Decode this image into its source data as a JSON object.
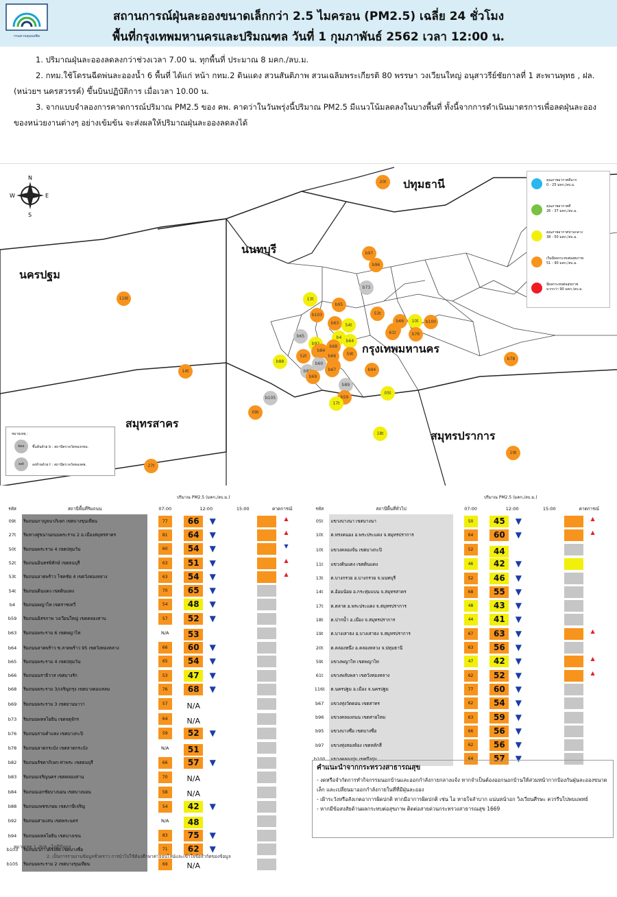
{
  "header": {
    "logo_text": "กรมควบคุมมลพิษ",
    "title_line1": "สถานการณ์ฝุ่นละอองขนาดเล็กกว่า 2.5 ไมครอน (PM2.5) เฉลี่ย 24 ชั่วโมง",
    "title_line2": "พื้นที่กรุงเทพมหานครและปริมณฑล วันที่ 1 กุมภาพันธ์ 2562 เวลา 12:00 น."
  },
  "notes": [
    "1. ปริมาณฝุ่นละอองลดลงกว่าช่วงเวลา 7.00 น. ทุกพื้นที่ ประมาณ 8 มคก./ลบ.ม.",
    "2. กทม.ใช้โดรนฉีดพ่นละอองน้ำ 6 พื้นที่ ได้แก่ หน้า กทม.2 ดินแดง สวนสันติภาพ สวนเฉลิมพระเกียรติ 80 พรรษา วงเวียนใหญ่ อนุสาวรีย์ชัยกาลที่ 1 สะพานพุทธ , ฝล. (หน่วยฯ นครสวรรค์) ขึ้นบินปฏิบัติการ เมื่อเวลา 10.00 น.",
    "3. จากแบบจำลองการคาดการณ์ปริมาณ PM2.5 ของ คพ. คาดว่าในวันพรุ่งนี้ปริมาณ PM2.5 มีแนวโน้มลดลงในบางพื้นที่ ทั้งนี้จากการดำเนินมาตรการเพื่อลดฝุ่นละอองของหน่วยงานต่างๆ อย่างเข้มข้น จะส่งผลให้ปริมาณฝุ่นละอองลดลงได้"
  ],
  "map": {
    "provinces": {
      "pathum": "ปทุมธานี",
      "nonthaburi": "นนทบุรี",
      "nakhonpathom": "นครปฐม",
      "bangkok": "กรุงเทพมหานคร",
      "samutsakhon": "สมุทรสาคร",
      "samutprakan": "สมุทรปราการ"
    },
    "compass": {
      "n": "N",
      "s": "S",
      "e": "E",
      "w": "W"
    },
    "legend": [
      {
        "title": "คุณภาพอากาศดีมาก",
        "range": "0 - 25 มคก./ลบ.ม.",
        "color": "#29b7ee"
      },
      {
        "title": "คุณภาพอากาศดี",
        "range": "26 - 37 มคก./ลบ.ม.",
        "color": "#7ac143"
      },
      {
        "title": "คุณภาพอากาศปานกลาง",
        "range": "38 - 50 มคก./ลบ.ม.",
        "color": "#f2ef0c"
      },
      {
        "title": "เริ่มมีผลกระทบต่อสุขภาพ",
        "range": "51 - 90 มคก./ลบ.ม.",
        "color": "#f7941d"
      },
      {
        "title": "มีผลกระทบต่อสุขภาพ",
        "range": "มากกว่า 90 มคก./ลบ.ม.",
        "color": "#ed1c24"
      }
    ],
    "symbol_legend": {
      "title": "หมายเหตุ :",
      "b_label": "ขึ้นต้นด้วย b : สถานีตรวจวัดของกทม.",
      "t_label": "ลงท้ายด้วย t : สถานีตรวจวัดของคพ.",
      "b_sym": "bxx",
      "t_sym": "xxt"
    },
    "stations": [
      {
        "id": "20t",
        "c": "o"
      },
      {
        "id": "b97",
        "c": "o"
      },
      {
        "id": "b96",
        "c": "o"
      },
      {
        "id": "b73",
        "c": "g"
      },
      {
        "id": "13t",
        "c": "y"
      },
      {
        "id": "b95",
        "c": "o"
      },
      {
        "id": "b103",
        "c": "o"
      },
      {
        "id": "53t",
        "c": "o"
      },
      {
        "id": "b63",
        "c": "o"
      },
      {
        "id": "54t",
        "c": "y"
      },
      {
        "id": "50t",
        "c": "o"
      },
      {
        "id": "b66",
        "c": "o"
      },
      {
        "id": "10t",
        "c": "y"
      },
      {
        "id": "b100",
        "c": "o"
      },
      {
        "id": "61t",
        "c": "o"
      },
      {
        "id": "b76",
        "c": "o"
      },
      {
        "id": "b65",
        "c": "g"
      },
      {
        "id": "b4",
        "c": "y"
      },
      {
        "id": "b92",
        "c": "y"
      },
      {
        "id": "b64",
        "c": "y"
      },
      {
        "id": "b68",
        "c": "o"
      },
      {
        "id": "b88",
        "c": "y"
      },
      {
        "id": "52t",
        "c": "o"
      },
      {
        "id": "b62",
        "c": "o"
      },
      {
        "id": "b66",
        "c": "o"
      },
      {
        "id": "b61",
        "c": "o"
      },
      {
        "id": "b67",
        "c": "o"
      },
      {
        "id": "b94",
        "c": "o"
      },
      {
        "id": "b83",
        "c": "g"
      },
      {
        "id": "b69",
        "c": "o"
      },
      {
        "id": "59t",
        "c": "o"
      },
      {
        "id": "b89",
        "c": "g"
      },
      {
        "id": "b59",
        "c": "o"
      },
      {
        "id": "17t",
        "c": "y"
      },
      {
        "id": "b105",
        "c": "g"
      },
      {
        "id": "05t",
        "c": "y"
      },
      {
        "id": "116t",
        "c": "o"
      },
      {
        "id": "14t",
        "c": "o"
      },
      {
        "id": "09t",
        "c": "o"
      },
      {
        "id": "b78",
        "c": "o"
      },
      {
        "id": "18t",
        "c": "y"
      },
      {
        "id": "19t",
        "c": "o"
      },
      {
        "id": "27t",
        "c": "o"
      },
      {
        "id": "b60",
        "c": "g"
      },
      {
        "id": "b84",
        "c": "o"
      }
    ]
  },
  "table_headers": {
    "unit_label": "ปริมาณ PM2.5 (มคก./ลบ.ม.)",
    "code": "รหัส",
    "left_name": "สถานีพื้นที่ริมถนน",
    "right_name": "สถานีพื้นที่ทั่วไป",
    "t7": "07:00",
    "t12": "12:00",
    "t15": "15:00",
    "forecast": "คาดการณ์"
  },
  "left_rows": [
    {
      "code": "09t",
      "name": "ริมถนนกาญจนาภิเษก เขตบางขุนเทียน",
      "v7": "77",
      "v12": "66",
      "a": "dn",
      "f": "o",
      "ft": "up"
    },
    {
      "code": "27t",
      "name": "ริมทางคู่ขนานถนนพระราม 2 อ.เมืองสมุทรสาคร",
      "v7": "81",
      "v12": "64",
      "a": "dn",
      "f": "o",
      "ft": "up"
    },
    {
      "code": "50t",
      "name": "ริมถนนพระราม 4 เขตปทุมวัน",
      "v7": "60",
      "v12": "54",
      "a": "dn",
      "f": "o",
      "ft": "dn"
    },
    {
      "code": "52t",
      "name": "ริมถนนอินทรพิทักษ์ เขตธนบุรี",
      "v7": "63",
      "v12": "51",
      "a": "dn",
      "f": "o",
      "ft": "up"
    },
    {
      "code": "53t",
      "name": "ริมถนนลาดพร้าว โชคชัย 4 เขตวังทองหลาง",
      "v7": "63",
      "v12": "54",
      "a": "dn",
      "f": "o",
      "ft": "up"
    },
    {
      "code": "54t",
      "name": "ริมถนนดินแดง เขตดินแดง",
      "v7": "70",
      "v12": "65",
      "a": "dn",
      "f": "g",
      "ft": ""
    },
    {
      "code": "b4",
      "name": "ริมถนนพญาไท เขตราชเทวี",
      "v7": "54",
      "v12": "48",
      "a": "dn",
      "f": "g",
      "ft": "",
      "y12": true
    },
    {
      "code": "b59",
      "name": "ริมถนนอิสรภาพ วงเวียนใหญ่ เขตคลองสาน",
      "v7": "57",
      "v12": "52",
      "a": "dn",
      "f": "g",
      "ft": ""
    },
    {
      "code": "b63",
      "name": "ริมถนนพระราม 6 เขตพญาไท",
      "v7": "N/A",
      "v12": "53",
      "a": "",
      "f": "g",
      "ft": ""
    },
    {
      "code": "b64",
      "name": "ริมถนนลาดพร้าว ซ.ลาดพร้าว 95 เขตวังทองหลาง",
      "v7": "66",
      "v12": "60",
      "a": "dn",
      "f": "g",
      "ft": ""
    },
    {
      "code": "b65",
      "name": "ริมถนนพระราม 4 เขตปทุมวัน",
      "v7": "65",
      "v12": "54",
      "a": "dn",
      "f": "g",
      "ft": ""
    },
    {
      "code": "b66",
      "name": "ริมถนนนราธิวาส เขตบางรัก",
      "v7": "53",
      "v12": "47",
      "a": "dn",
      "f": "g",
      "ft": "",
      "y12": true
    },
    {
      "code": "b68",
      "name": "ริมถนนพระราม 3/เจริญกรุง เขตบางคอแหลม",
      "v7": "76",
      "v12": "68",
      "a": "dn",
      "f": "g",
      "ft": ""
    },
    {
      "code": "b69",
      "name": "ริมถนนพระราม 3 เขตยานนาวา",
      "v7": "57",
      "v12": "N/A",
      "a": "",
      "f": "g",
      "ft": ""
    },
    {
      "code": "b73",
      "name": "ริมถนนพหลโยธิน เขตจตุจักร",
      "v7": "64",
      "v12": "N/A",
      "a": "",
      "f": "g",
      "ft": ""
    },
    {
      "code": "b76",
      "name": "ริมถนนรามคำแหง เขตบางกะปิ",
      "v7": "59",
      "v12": "52",
      "a": "dn",
      "f": "g",
      "ft": ""
    },
    {
      "code": "b78",
      "name": "ริมถนนลาดกระบัง เขตลาดกระบัง",
      "v7": "N/A",
      "v12": "51",
      "a": "",
      "f": "g",
      "ft": ""
    },
    {
      "code": "b82",
      "name": "ริมถนนรัชดาภิเษก-ท่าพระ เขตธนบุรี",
      "v7": "66",
      "v12": "57",
      "a": "dn",
      "f": "g",
      "ft": ""
    },
    {
      "code": "b83",
      "name": "ริมถนนเจริญนคร เขตคลองสาน",
      "v7": "70",
      "v12": "N/A",
      "a": "",
      "f": "g",
      "ft": ""
    },
    {
      "code": "b84",
      "name": "ริมถนนเอกชัยบางบอน เขตบางบอน",
      "v7": "58",
      "v12": "N/A",
      "a": "",
      "f": "g",
      "ft": ""
    },
    {
      "code": "b88",
      "name": "ริมถนนเพชรเกษม เขตภาษีเจริญ",
      "v7": "54",
      "v12": "42",
      "a": "dn",
      "f": "g",
      "ft": "",
      "y12": true
    },
    {
      "code": "b92",
      "name": "ริมถนนสามเสน เขตพระนคร",
      "v7": "N/A",
      "v12": "48",
      "a": "",
      "f": "g",
      "ft": "",
      "y12": true
    },
    {
      "code": "b94",
      "name": "ริมถนนพหลโยธิน เขตบางเขน",
      "v7": "83",
      "v12": "75",
      "a": "dn",
      "f": "g",
      "ft": ""
    },
    {
      "code": "b103",
      "name": "ริมถนนวิภาวดีรังสิต เขตบางซื่อ",
      "v7": "71",
      "v12": "62",
      "a": "dn",
      "f": "g",
      "ft": ""
    },
    {
      "code": "b105",
      "name": "ริมถนนพระราม 2 เขตบางขุนเทียน",
      "v7": "69",
      "v12": "N/A",
      "a": "",
      "f": "g",
      "ft": ""
    }
  ],
  "right_rows": [
    {
      "code": "05t",
      "name": "แขวงบางนา เขตบางนา",
      "v7": "50",
      "v12": "45",
      "a": "dn",
      "f": "o",
      "ft": "up",
      "y7": true,
      "y12": true
    },
    {
      "code": "10t",
      "name": "ต.ทรงคนอง อ.พระประแดง จ.สมุทรปราการ",
      "v7": "64",
      "v12": "60",
      "a": "dn",
      "f": "o",
      "ft": "up"
    },
    {
      "code": "10t",
      "name": "แขวงคลองจั่น เขตบางกะปิ",
      "v7": "52",
      "v12": "44",
      "a": "",
      "f": "g",
      "ft": "",
      "y12": true
    },
    {
      "code": "11t",
      "name": "แขวงดินแดง เขตดินแดง",
      "v7": "46",
      "v12": "42",
      "a": "dn",
      "f": "y",
      "ft": "",
      "y7": true,
      "y12": true
    },
    {
      "code": "13t",
      "name": "ต.บางกรวย อ.บางกรวย จ.นนทบุรี",
      "v7": "52",
      "v12": "46",
      "a": "dn",
      "f": "g",
      "ft": "",
      "y12": true
    },
    {
      "code": "14t",
      "name": "ต.อ้อมน้อย อ.กระทุ่มแบน จ.สมุทรสาคร",
      "v7": "68",
      "v12": "55",
      "a": "dn",
      "f": "g",
      "ft": ""
    },
    {
      "code": "17t",
      "name": "ต.ตลาด อ.พระประแดง จ.สมุทรปราการ",
      "v7": "48",
      "v12": "43",
      "a": "dn",
      "f": "g",
      "ft": "",
      "y7": true,
      "y12": true
    },
    {
      "code": "18t",
      "name": "ต.ปากน้ำ อ.เมือง จ.สมุทรปราการ",
      "v7": "44",
      "v12": "41",
      "a": "dn",
      "f": "g",
      "ft": "",
      "y7": true,
      "y12": true
    },
    {
      "code": "19t",
      "name": "ต.บางเสาธง อ.บางเสาธง จ.สมุทรปราการ",
      "v7": "67",
      "v12": "63",
      "a": "dn",
      "f": "o",
      "ft": "up"
    },
    {
      "code": "20t",
      "name": "ต.คลองหนึ่ง อ.คลองหลวง จ.ปทุมธานี",
      "v7": "63",
      "v12": "56",
      "a": "dn",
      "f": "g",
      "ft": ""
    },
    {
      "code": "59t",
      "name": "แขวงพญาไท เขตพญาไท",
      "v7": "47",
      "v12": "42",
      "a": "dn",
      "f": "o",
      "ft": "up",
      "y7": true,
      "y12": true
    },
    {
      "code": "61t",
      "name": "แขวงพลับพลา เขตวังทองหลาง",
      "v7": "62",
      "v12": "52",
      "a": "dn",
      "f": "o",
      "ft": "up"
    },
    {
      "code": "116t",
      "name": "ต.นครปฐม อ.เมือง จ.นครปฐม",
      "v7": "77",
      "v12": "60",
      "a": "dn",
      "f": "g",
      "ft": ""
    },
    {
      "code": "b67",
      "name": "แขวงทุ่งวัดดอน เขตสาทร",
      "v7": "62",
      "v12": "54",
      "a": "dn",
      "f": "g",
      "ft": ""
    },
    {
      "code": "b96",
      "name": "แขวงคลองถนน เขตสายไหม",
      "v7": "63",
      "v12": "59",
      "a": "dn",
      "f": "g",
      "ft": ""
    },
    {
      "code": "b95",
      "name": "แขวงบางซื่อ เขตบางซื่อ",
      "v7": "66",
      "v12": "56",
      "a": "dn",
      "f": "g",
      "ft": ""
    },
    {
      "code": "b97",
      "name": "แขวงทุ่งสองห้อง เขตหลักสี่",
      "v7": "62",
      "v12": "56",
      "a": "dn",
      "f": "g",
      "ft": ""
    },
    {
      "code": "b100",
      "name": "แขวงคลองกุ่ม เขตบึงกุ่ม",
      "v7": "64",
      "v12": "57",
      "a": "dn",
      "f": "g",
      "ft": ""
    }
  ],
  "advice": {
    "title": "คำแนะนำจากกระทรวงสาธารณสุข",
    "items": [
      "- งดหรือจำกัดการทำกิจกรรมนอกบ้านและออกกำลังกายกลางแจ้ง หากจำเป็นต้องออกนอกบ้านให้สวมหน้ากากป้องกันฝุ่นละอองขนาดเล็ก และเปลี่ยนมาออกกำลังกายในที่ที่มีฝุ่นละออง",
      "- เฝ้าระวังหรือสังเกตอาการผิดปกติ หากมีอาการผิดปกติ เช่น ไอ หายใจลำบาก แน่นหน้าอก วิงเวียนศีรษะ ควรรีบไปพบแพทย์",
      "- หากมีข้อสงสัยด้านผลกระทบต่อสุขภาพ ติดต่อสายด่วนกระทรวงสาธารณสุข 1669"
    ]
  },
  "footnotes": [
    "หมายเหตุ 1. N/A : ไม่มีข้อมูล",
    "2. เป็นการรายงานข้อมูลชั่วคราว การนำไปใช้ต้องศึกษาค่าออนไลน์และเข้าใจข้อจำกัดของข้อมูล"
  ]
}
